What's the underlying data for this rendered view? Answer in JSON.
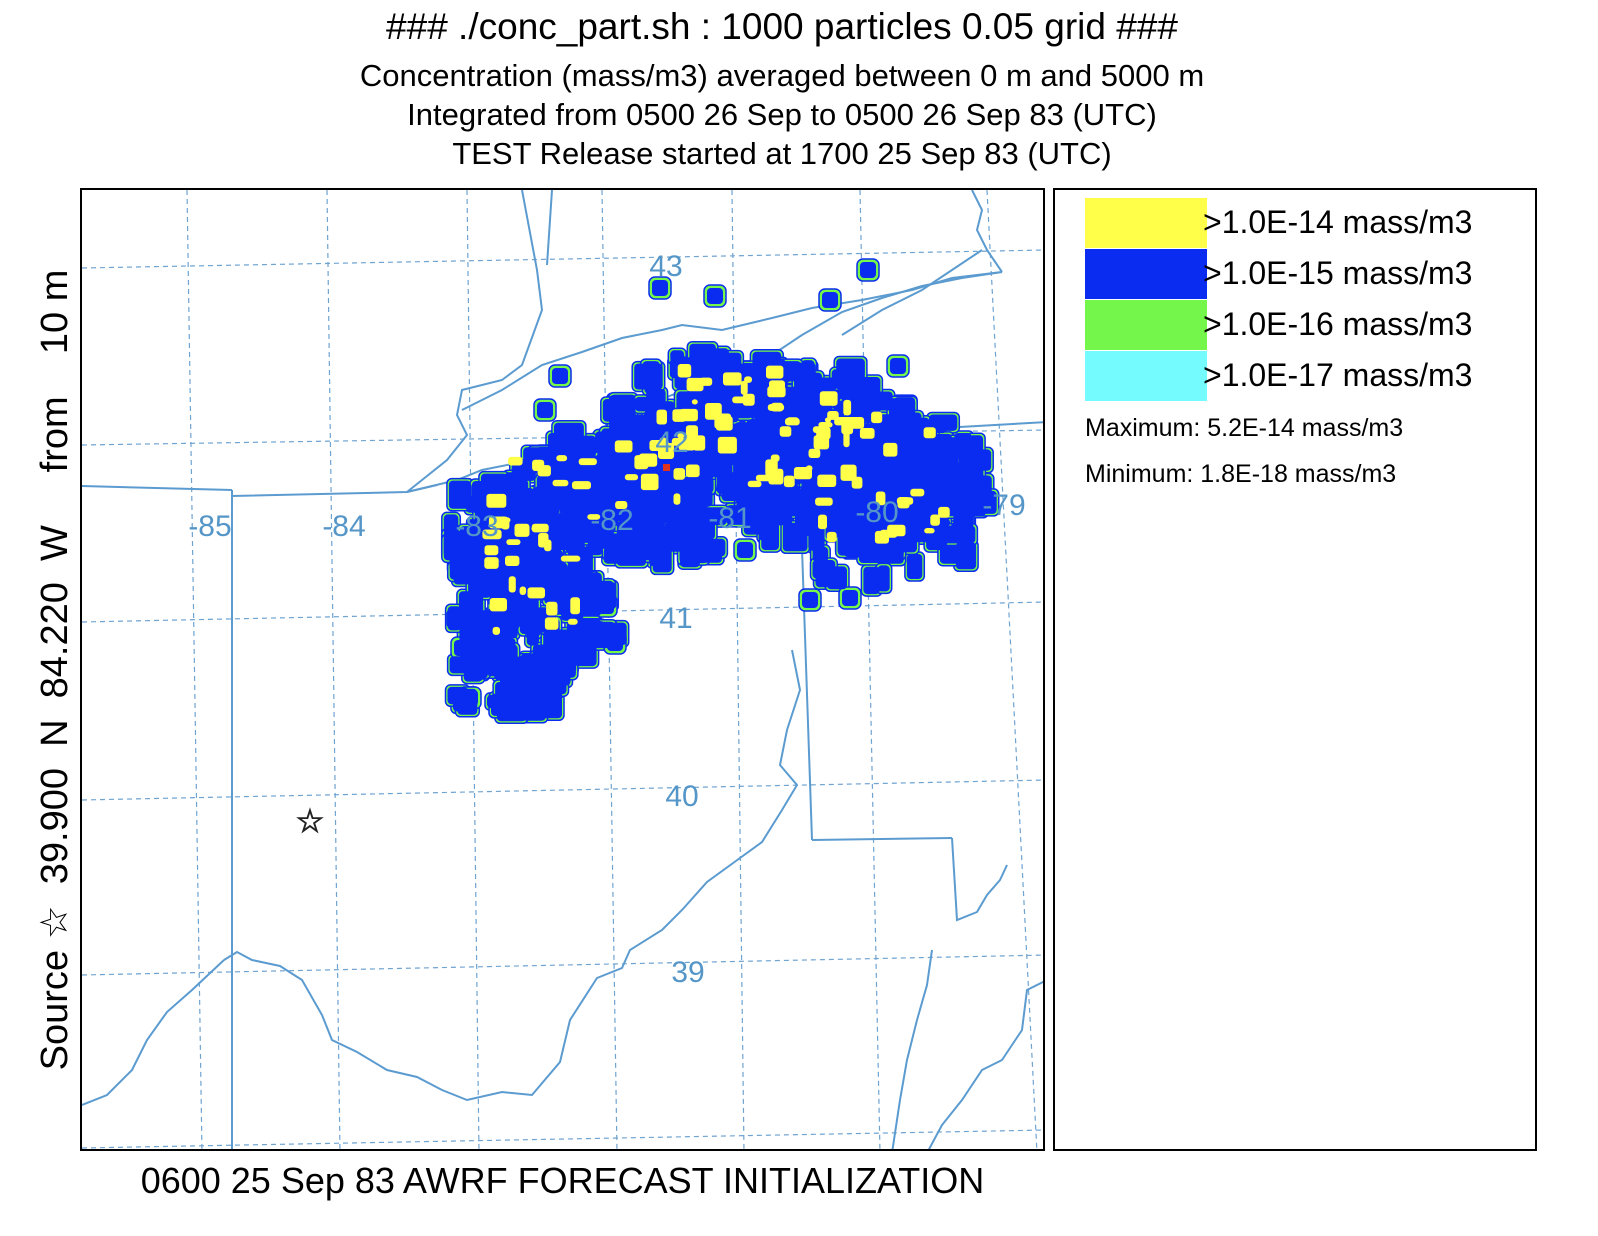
{
  "titles": {
    "line1": "### ./conc_part.sh : 1000 particles 0.05 grid ###",
    "line2": "Concentration  (mass/m3) averaged between     0 m and  5000 m",
    "line3": "Integrated from 0500 26 Sep to 0500 26 Sep 83 (UTC)",
    "line4": "TEST Release started at 1700 25 Sep 83 (UTC)"
  },
  "source_label": "Source ☆  39.900  N  84.220  W     from    10 m",
  "footer": "0600 25 Sep 83 AWRF FORECAST INITIALIZATION",
  "map": {
    "longitude_labels": [
      "-85",
      "-84",
      "-83",
      "-82",
      "-81",
      "-80",
      "-79"
    ],
    "latitude_labels": [
      "43",
      "42",
      "41",
      "40",
      "39"
    ],
    "source_marker": "star-icon",
    "colors": {
      "grid": "#6fa3d0",
      "borders": "#5b9bd0",
      "coord_labels": "#5596c8",
      "maximum_marker": "#e0321e"
    }
  },
  "legend": {
    "entries": [
      {
        "label": ">1.0E-14 mass/m3",
        "color": "#ffff4a"
      },
      {
        "label": ">1.0E-15 mass/m3",
        "color": "#0a2cf0"
      },
      {
        "label": ">1.0E-16 mass/m3",
        "color": "#74f74a"
      },
      {
        "label": ">1.0E-17 mass/m3",
        "color": "#74fbfd"
      }
    ],
    "maximum": "Maximum: 5.2E-14 mass/m3",
    "minimum": "Minimum: 1.8E-18 mass/m3"
  }
}
